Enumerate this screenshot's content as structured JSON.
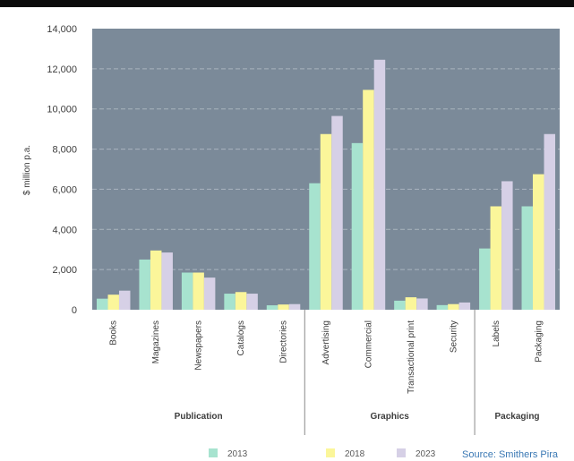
{
  "chart_data": {
    "type": "bar",
    "title": "",
    "xlabel": "",
    "ylabel": "$ million p.a.",
    "ylim": [
      0,
      14000
    ],
    "yticks": [
      "0",
      "2,000",
      "4,000",
      "6,000",
      "8,000",
      "10,000",
      "12,000",
      "14,000"
    ],
    "grid": true,
    "categories": [
      "Books",
      "Magazines",
      "Newspapers",
      "Catalogs",
      "Directories",
      "Advertising",
      "Commercial",
      "Transactional print",
      "Security",
      "Labels",
      "Packaging"
    ],
    "groups": [
      {
        "label": "Publication",
        "count": 5
      },
      {
        "label": "Graphics",
        "count": 4
      },
      {
        "label": "Packaging",
        "count": 2
      }
    ],
    "series": [
      {
        "name": "2013",
        "color": "#a7e3cf",
        "values": [
          550,
          2500,
          1850,
          800,
          220,
          6300,
          8300,
          450,
          230,
          3050,
          5150
        ]
      },
      {
        "name": "2018",
        "color": "#fbf69a",
        "values": [
          750,
          2950,
          1850,
          880,
          260,
          8750,
          10950,
          620,
          280,
          5150,
          6750
        ]
      },
      {
        "name": "2023",
        "color": "#d6d0e6",
        "values": [
          950,
          2850,
          1600,
          800,
          280,
          9650,
          12450,
          560,
          360,
          6400,
          8750
        ]
      }
    ],
    "legend_position": "bottom",
    "plot_background": "#7b8a99",
    "source": "Source: Smithers Pira"
  }
}
